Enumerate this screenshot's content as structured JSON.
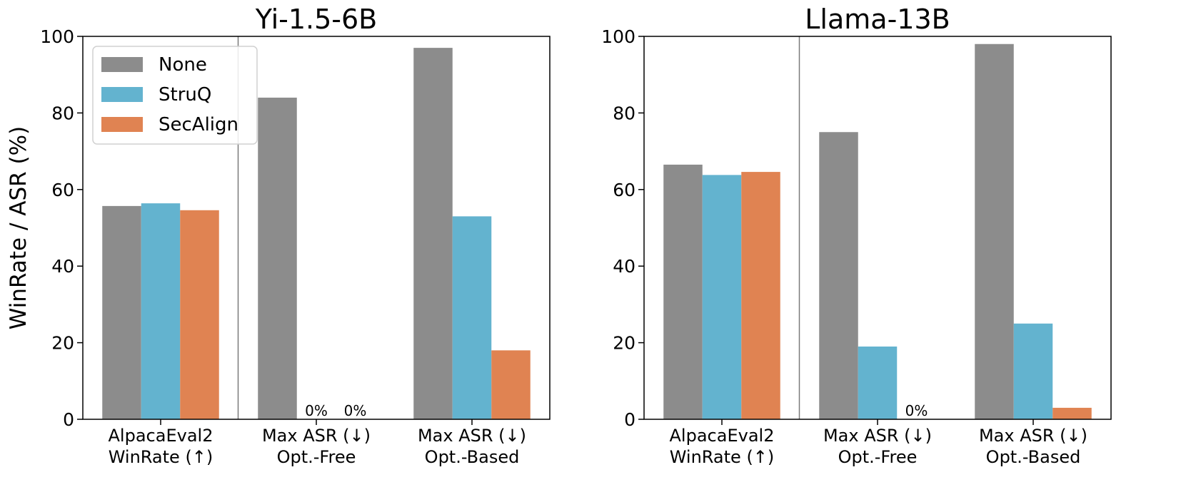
{
  "chart_data": [
    {
      "type": "bar",
      "title": "Yi-1.5-6B",
      "ylabel": "WinRate / ASR (%)",
      "xlabel": "",
      "ylim": [
        0,
        100
      ],
      "yticks": [
        "0",
        "20",
        "40",
        "60",
        "80",
        "100"
      ],
      "categories": [
        [
          "AlpacaEval2",
          "WinRate (↑)"
        ],
        [
          "Max ASR (↓)",
          "Opt.-Free"
        ],
        [
          "Max ASR (↓)",
          "Opt.-Based"
        ]
      ],
      "series": [
        {
          "name": "None",
          "color": "#8c8c8c",
          "values": [
            55.7,
            84,
            97
          ]
        },
        {
          "name": "StruQ",
          "color": "#63b3cf",
          "values": [
            56.4,
            0,
            53
          ]
        },
        {
          "name": "SecAlign",
          "color": "#e08352",
          "values": [
            54.6,
            0,
            18
          ]
        }
      ],
      "annotations": [
        {
          "category": 1,
          "series": 1,
          "text": "0%"
        },
        {
          "category": 1,
          "series": 2,
          "text": "0%"
        }
      ],
      "divider_after_category": 0,
      "legend": {
        "placement": "top-left",
        "entries": [
          "None",
          "StruQ",
          "SecAlign"
        ]
      }
    },
    {
      "type": "bar",
      "title": "Llama-13B",
      "ylabel": "",
      "xlabel": "",
      "ylim": [
        0,
        100
      ],
      "yticks": [
        "0",
        "20",
        "40",
        "60",
        "80",
        "100"
      ],
      "categories": [
        [
          "AlpacaEval2",
          "WinRate (↑)"
        ],
        [
          "Max ASR (↓)",
          "Opt.-Free"
        ],
        [
          "Max ASR (↓)",
          "Opt.-Based"
        ]
      ],
      "series": [
        {
          "name": "None",
          "color": "#8c8c8c",
          "values": [
            66.5,
            75,
            98
          ]
        },
        {
          "name": "StruQ",
          "color": "#63b3cf",
          "values": [
            63.8,
            19,
            25
          ]
        },
        {
          "name": "SecAlign",
          "color": "#e08352",
          "values": [
            64.6,
            0,
            3
          ]
        }
      ],
      "annotations": [
        {
          "category": 1,
          "series": 2,
          "text": "0%"
        }
      ],
      "divider_after_category": 0,
      "legend": null
    }
  ]
}
